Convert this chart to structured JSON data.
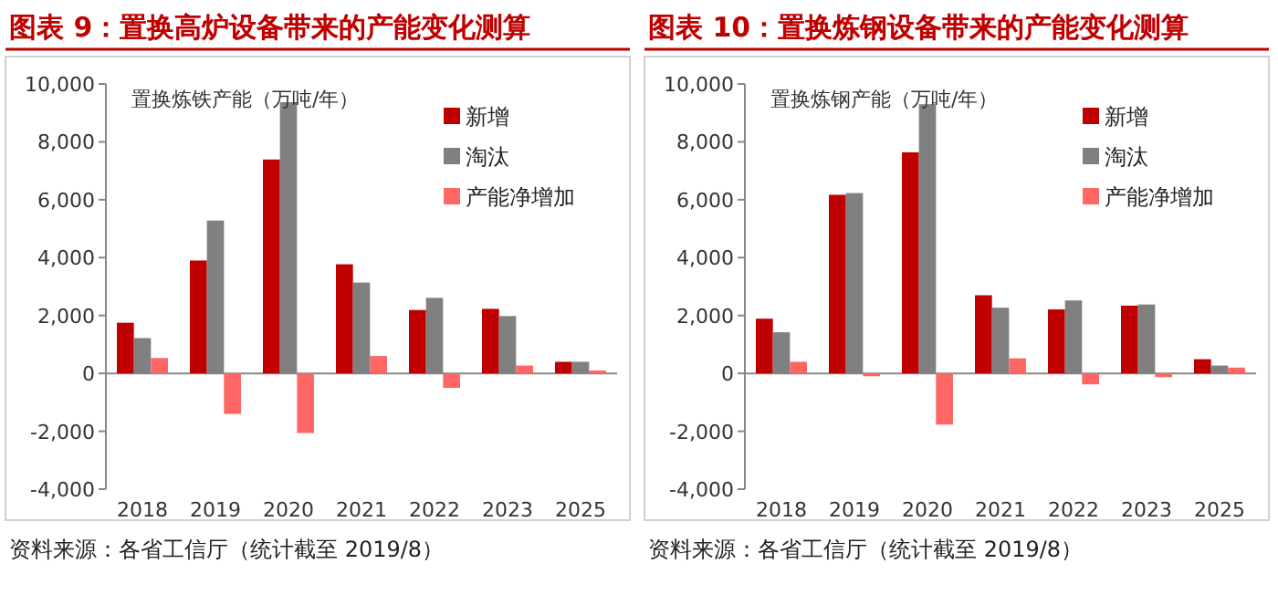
{
  "chart_data": [
    {
      "type": "bar",
      "title": "图表 9：置换高炉设备带来的产能变化测算",
      "ylabel": "置换炼铁产能（万吨/年）",
      "categories": [
        "2018",
        "2019",
        "2020",
        "2021",
        "2022",
        "2023",
        "2025"
      ],
      "series": [
        {
          "name": "新增",
          "color": "#c00000",
          "values": [
            1750,
            3900,
            7390,
            3770,
            2190,
            2230,
            400
          ]
        },
        {
          "name": "淘汰",
          "color": "#808080",
          "values": [
            1220,
            5280,
            9370,
            3140,
            2610,
            1980,
            400
          ]
        },
        {
          "name": "产能净增加",
          "color": "#ff6666",
          "values": [
            530,
            -1400,
            -2060,
            600,
            -500,
            270,
            100
          ]
        }
      ],
      "ylim": [
        -4000,
        10000
      ],
      "yticks": [
        {
          "value": -4000,
          "label": "-4,000"
        },
        {
          "value": -2000,
          "label": "-2,000"
        },
        0,
        {
          "value": 2000,
          "label": "2,000"
        },
        {
          "value": 4000,
          "label": "4,000"
        },
        {
          "value": 6000,
          "label": "6,000"
        },
        {
          "value": 8000,
          "label": "8,000"
        },
        {
          "value": 10000,
          "label": "10,000"
        }
      ],
      "legend": "top right",
      "annotations": [
        "资料来源：各省工信厅（统计截至 2019/8）"
      ]
    },
    {
      "type": "bar",
      "title": "图表 10：置换炼钢设备带来的产能变化测算",
      "ylabel": "置换炼钢产能（万吨/年）",
      "categories": [
        "2018",
        "2019",
        "2020",
        "2021",
        "2022",
        "2023",
        "2025"
      ],
      "series": [
        {
          "name": "新增",
          "color": "#c00000",
          "values": [
            1890,
            6170,
            7640,
            2700,
            2210,
            2340,
            490
          ]
        },
        {
          "name": "淘汰",
          "color": "#808080",
          "values": [
            1420,
            6230,
            9300,
            2270,
            2520,
            2380,
            270
          ]
        },
        {
          "name": "产能净增加",
          "color": "#ff6666",
          "values": [
            400,
            -100,
            -1770,
            520,
            -380,
            -130,
            200
          ]
        }
      ],
      "ylim": [
        -4000,
        10000
      ],
      "yticks": [
        {
          "value": -4000,
          "label": "-4,000"
        },
        {
          "value": -2000,
          "label": "-2,000"
        },
        0,
        {
          "value": 2000,
          "label": "2,000"
        },
        {
          "value": 4000,
          "label": "4,000"
        },
        {
          "value": 6000,
          "label": "6,000"
        },
        {
          "value": 8000,
          "label": "8,000"
        },
        {
          "value": 10000,
          "label": "10,000"
        }
      ],
      "legend": "top right",
      "annotations": [
        "资料来源：各省工信厅（统计截至 2019/8）"
      ]
    }
  ]
}
